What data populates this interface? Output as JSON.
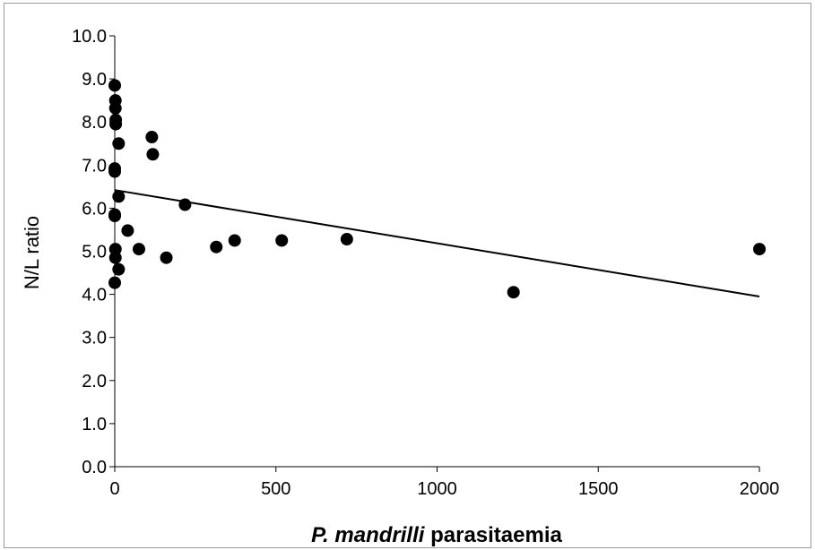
{
  "chart_data": {
    "type": "scatter",
    "xlabel_italic": "P. mandrilli",
    "xlabel_rest": " parasitaemia",
    "ylabel": "N/L ratio",
    "xlim": [
      0,
      2000
    ],
    "ylim": [
      0,
      10
    ],
    "x_ticks": [
      "0",
      "500",
      "1000",
      "1500",
      "2000"
    ],
    "y_ticks": [
      "0.0",
      "1.0",
      "2.0",
      "3.0",
      "4.0",
      "5.0",
      "6.0",
      "7.0",
      "8.0",
      "9.0",
      "10.0"
    ],
    "grid": false,
    "points": [
      {
        "x": 0,
        "y": 8.85
      },
      {
        "x": 2,
        "y": 8.5
      },
      {
        "x": 2,
        "y": 8.32
      },
      {
        "x": 3,
        "y": 8.05
      },
      {
        "x": 3,
        "y": 7.95
      },
      {
        "x": 12,
        "y": 7.5
      },
      {
        "x": 0,
        "y": 6.92
      },
      {
        "x": 0,
        "y": 6.85
      },
      {
        "x": 12,
        "y": 6.27
      },
      {
        "x": 0,
        "y": 5.85
      },
      {
        "x": 0,
        "y": 5.82
      },
      {
        "x": 40,
        "y": 5.48
      },
      {
        "x": 2,
        "y": 5.05
      },
      {
        "x": 2,
        "y": 4.85
      },
      {
        "x": 12,
        "y": 4.58
      },
      {
        "x": 0,
        "y": 4.27
      },
      {
        "x": 75,
        "y": 5.05
      },
      {
        "x": 115,
        "y": 7.65
      },
      {
        "x": 118,
        "y": 7.25
      },
      {
        "x": 160,
        "y": 4.85
      },
      {
        "x": 218,
        "y": 6.08
      },
      {
        "x": 315,
        "y": 5.1
      },
      {
        "x": 372,
        "y": 5.25
      },
      {
        "x": 518,
        "y": 5.25
      },
      {
        "x": 720,
        "y": 5.28
      },
      {
        "x": 1237,
        "y": 4.05
      },
      {
        "x": 2000,
        "y": 5.05
      }
    ],
    "trendline": {
      "type": "linear",
      "x": [
        0,
        2000
      ],
      "y": [
        6.42,
        3.95
      ]
    },
    "marker_color": "#000000",
    "line_color": "#000000"
  }
}
